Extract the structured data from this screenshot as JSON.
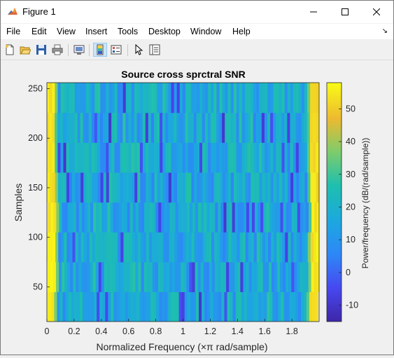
{
  "window": {
    "title": "Figure 1",
    "icon": "matlab-figure-icon",
    "controls": {
      "minimize_icon": "minimize-icon",
      "maximize_icon": "maximize-icon",
      "close_icon": "close-icon"
    }
  },
  "menu": {
    "items": [
      "File",
      "Edit",
      "View",
      "Insert",
      "Tools",
      "Desktop",
      "Window",
      "Help"
    ],
    "overflow_icon": "dock-arrow-icon"
  },
  "toolbar": {
    "buttons": [
      "new-figure-icon",
      "open-file-icon",
      "save-icon",
      "print-icon",
      "link-plot-icon",
      "insert-colorbar-icon",
      "insert-legend-icon",
      "edit-plot-icon",
      "property-inspector-icon"
    ],
    "active": "insert-colorbar-icon"
  },
  "chart_data": {
    "type": "heatmap",
    "title": "Source cross sprctral SNR",
    "xlabel": "Normalized Frequency  (×π rad/sample)",
    "ylabel": "Samples",
    "xlim": [
      0,
      2
    ],
    "ylim": [
      15,
      256
    ],
    "xticks": [
      "0",
      "0.2",
      "0.4",
      "0.6",
      "0.8",
      "1",
      "1.2",
      "1.4",
      "1.6",
      "1.8"
    ],
    "yticks": [
      "50",
      "100",
      "150",
      "200",
      "250"
    ],
    "colorbar": {
      "label": "Power/frequency (dB/(rad/sample))",
      "ticks": [
        "50",
        "40",
        "30",
        "20",
        "10",
        "0",
        "-10"
      ],
      "range": [
        -15,
        58
      ],
      "colormap": "parula"
    },
    "rows": 8,
    "columns": 96,
    "value_description_edge": 57,
    "value_body_range": [
      5,
      28
    ]
  }
}
